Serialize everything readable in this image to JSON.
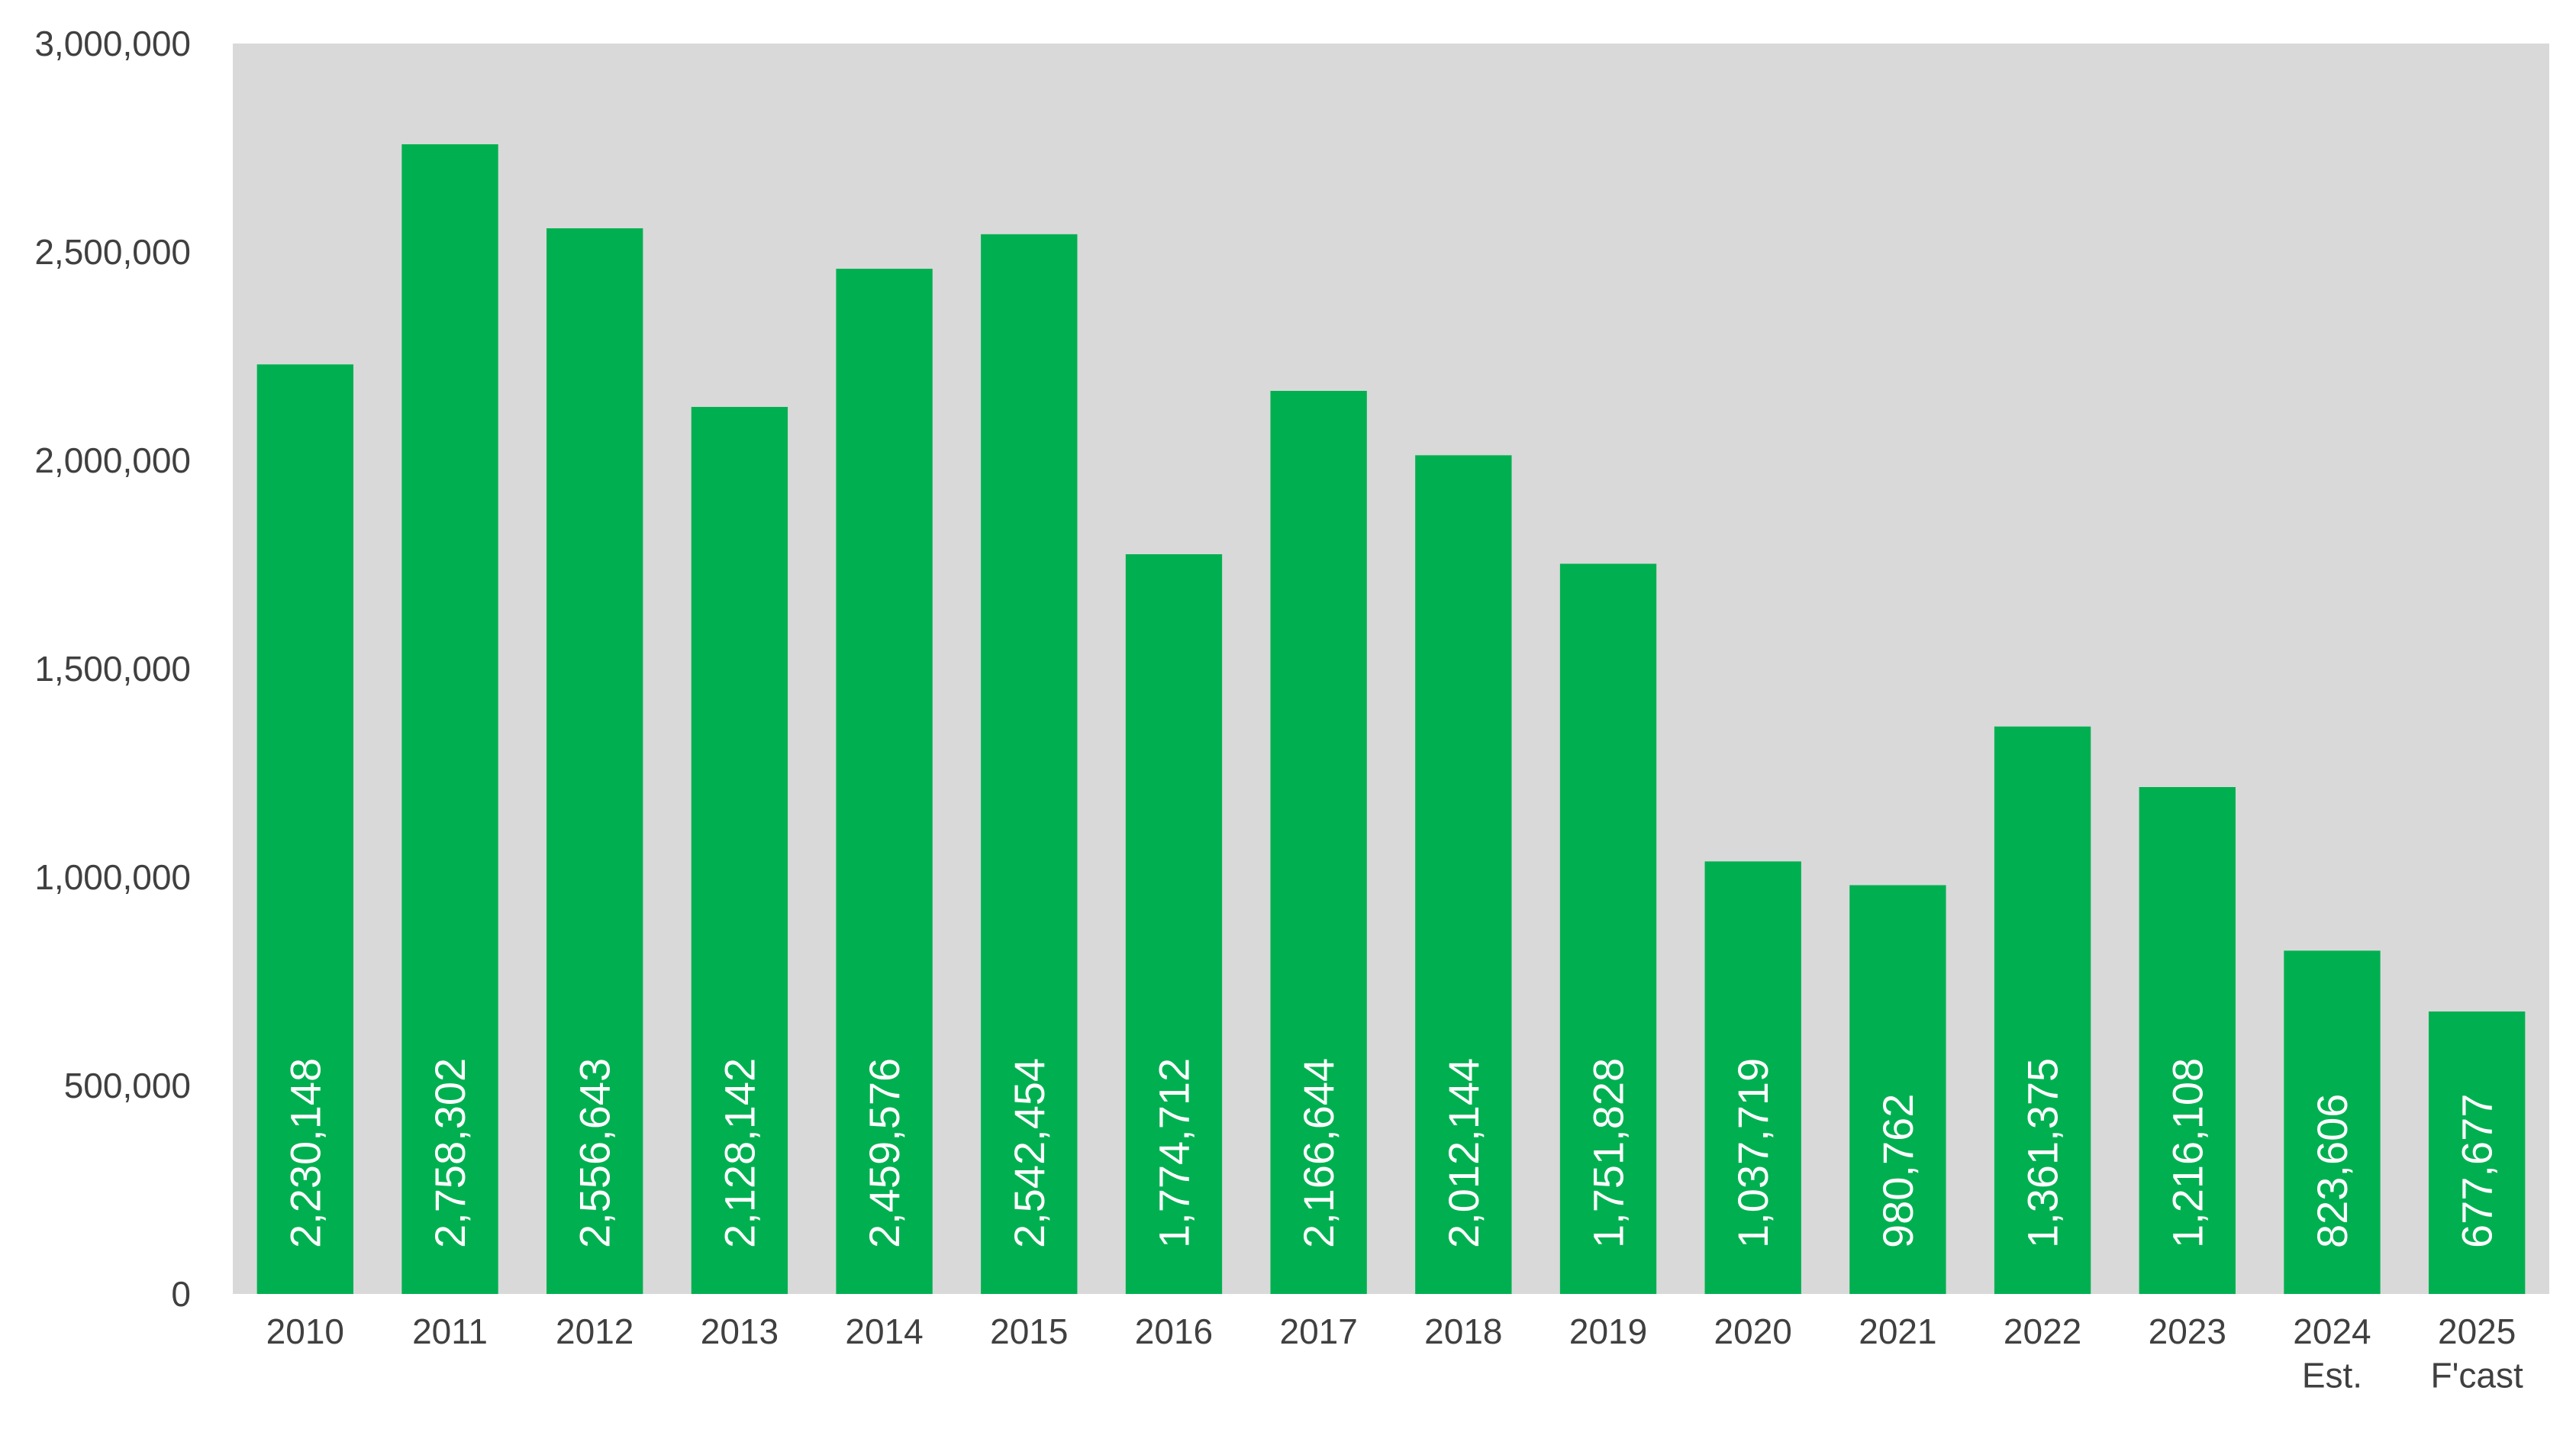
{
  "chart_data": {
    "type": "bar",
    "title": "",
    "xlabel": "",
    "ylabel": "",
    "ylim": [
      0,
      3000000
    ],
    "yticks": [
      0,
      500000,
      1000000,
      1500000,
      2000000,
      2500000,
      3000000
    ],
    "ytick_labels": [
      "0",
      "500,000",
      "1,000,000",
      "1,500,000",
      "2,000,000",
      "2,500,000",
      "3,000,000"
    ],
    "grid": false,
    "legend": "none",
    "categories": [
      [
        "2010"
      ],
      [
        "2011"
      ],
      [
        "2012"
      ],
      [
        "2013"
      ],
      [
        "2014"
      ],
      [
        "2015"
      ],
      [
        "2016"
      ],
      [
        "2017"
      ],
      [
        "2018"
      ],
      [
        "2019"
      ],
      [
        "2020"
      ],
      [
        "2021"
      ],
      [
        "2022"
      ],
      [
        "2023"
      ],
      [
        "2024",
        "Est."
      ],
      [
        "2025",
        "F'cast"
      ]
    ],
    "values": [
      2230148,
      2758302,
      2556643,
      2128142,
      2459576,
      2542454,
      1774712,
      2166644,
      2012144,
      1751828,
      1037719,
      980762,
      1361375,
      1216108,
      823606,
      677677
    ],
    "data_labels": [
      "2,230,148",
      "2,758,302",
      "2,556,643",
      "2,128,142",
      "2,459,576",
      "2,542,454",
      "1,774,712",
      "2,166,644",
      "2,012,144",
      "1,751,828",
      "1,037,719",
      "980,762",
      "1,361,375",
      "1,216,108",
      "823,606",
      "677,677"
    ],
    "colors": {
      "bar": "#00B050",
      "plot_background": "#D9D9D9",
      "page_background": "#FFFFFF",
      "tick_text": "#404040",
      "bar_label_text": "#FFFFFF"
    }
  }
}
